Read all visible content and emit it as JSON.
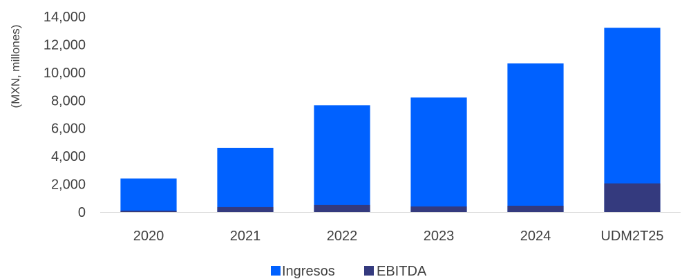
{
  "chart_data": {
    "type": "bar",
    "stacked": false,
    "overlap": true,
    "categories": [
      "2020",
      "2021",
      "2022",
      "2023",
      "2024",
      "UDM2T25"
    ],
    "series": [
      {
        "name": "Ingresos",
        "values": [
          2400,
          4600,
          7650,
          8200,
          10650,
          13200
        ],
        "color": "#0061FF"
      },
      {
        "name": "EBITDA",
        "values": [
          100,
          350,
          500,
          400,
          450,
          2050
        ],
        "color": "#343A7E"
      }
    ],
    "ylabel": "(MXN, millones)",
    "ylim": [
      0,
      14000
    ],
    "yticks": [
      0,
      2000,
      4000,
      6000,
      8000,
      10000,
      12000,
      14000
    ],
    "ytick_labels": [
      "0",
      "2,000",
      "4,000",
      "6,000",
      "8,000",
      "10,000",
      "12,000",
      "14,000"
    ],
    "grid": false,
    "legend_position": "bottom"
  }
}
